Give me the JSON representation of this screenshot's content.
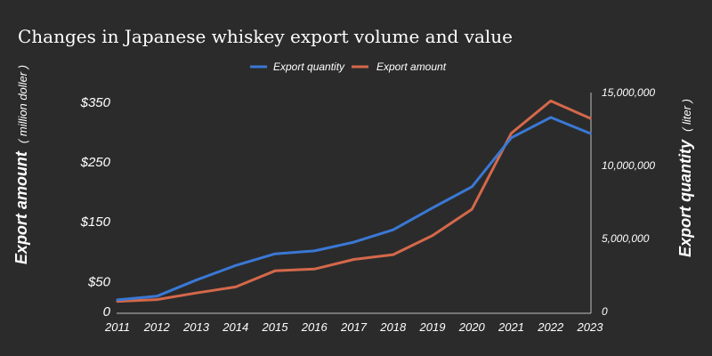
{
  "chart_data": {
    "type": "line",
    "title": "Changes in Japanese whiskey export volume and value",
    "x": [
      "2011",
      "2012",
      "2013",
      "2014",
      "2015",
      "2016",
      "2017",
      "2018",
      "2019",
      "2020",
      "2021",
      "2022",
      "2023"
    ],
    "series": [
      {
        "name": "Export quantity",
        "axis": "right",
        "color": "#3a78d4",
        "values": [
          800000,
          1050000,
          2150000,
          3150000,
          3950000,
          4150000,
          4750000,
          5600000,
          7100000,
          8550000,
          11900000,
          13300000,
          12200000
        ]
      },
      {
        "name": "Export amount",
        "axis": "left",
        "color": "#d4684a",
        "values": [
          17,
          20,
          31,
          41,
          68,
          71,
          87,
          95,
          127,
          171,
          298,
          352,
          323
        ]
      }
    ],
    "yleft": {
      "label": "Export amount",
      "label_sub": "( million doller )",
      "ticks": [
        "$350",
        "$250",
        "$150",
        "$50",
        "0"
      ],
      "tick_values": [
        350,
        250,
        150,
        50,
        0
      ],
      "ylim": [
        0,
        366
      ]
    },
    "yright": {
      "label": "Export quantity",
      "label_sub": "( liter )",
      "ticks": [
        "15,000,000",
        "10,000,000",
        "5,000,000",
        "0"
      ],
      "tick_values": [
        15000000,
        10000000,
        5000000,
        0
      ],
      "ylim": [
        0,
        15000000
      ]
    },
    "legend": "top-center",
    "grid": false
  }
}
